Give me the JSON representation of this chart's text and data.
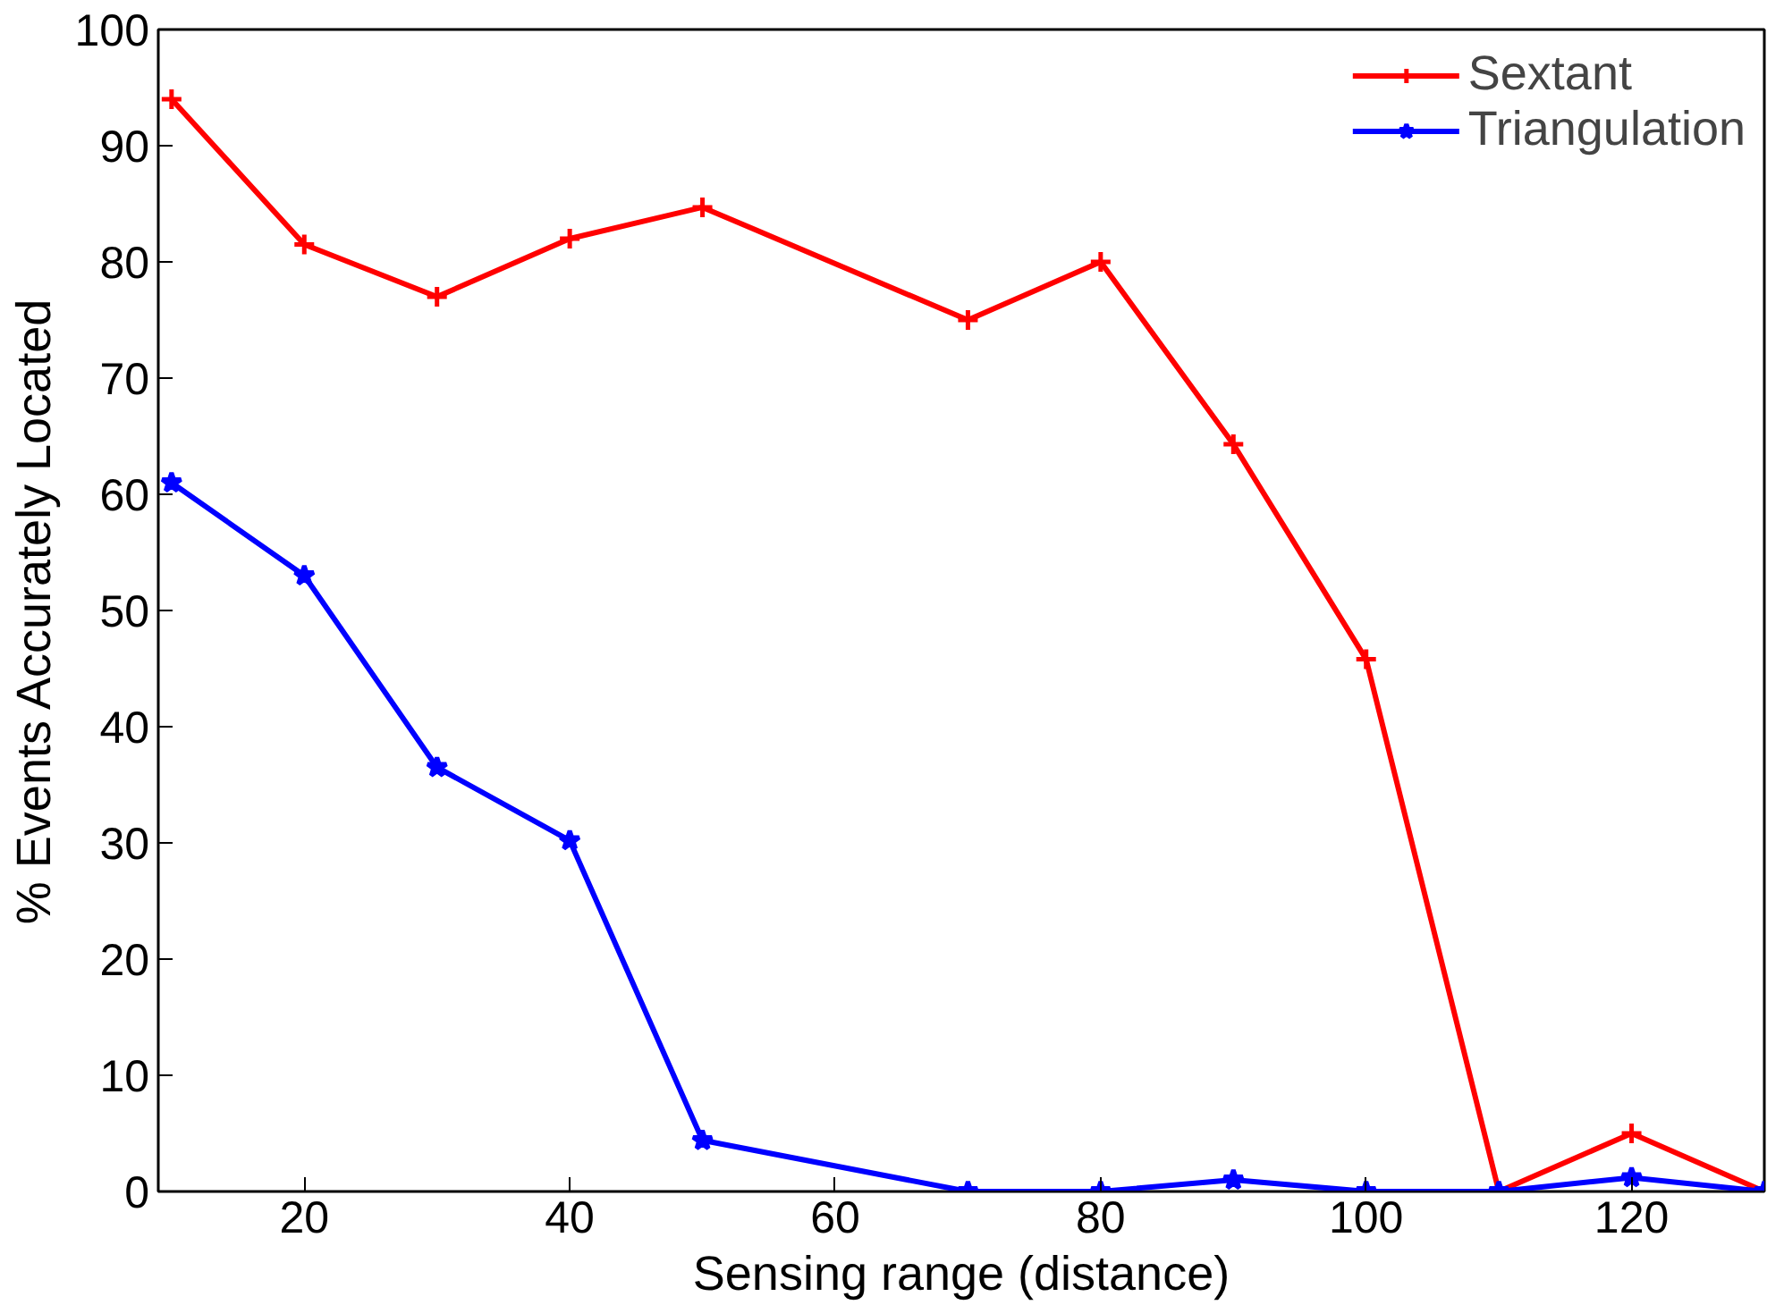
{
  "chart_data": {
    "type": "line",
    "xlabel": "Sensing range (distance)",
    "ylabel": "% Events Accurately Located",
    "x": [
      10,
      20,
      30,
      40,
      50,
      70,
      80,
      90,
      100,
      110,
      120,
      130
    ],
    "series": [
      {
        "name": "Sextant",
        "color": "#ff0000",
        "marker": "cross",
        "values": [
          94,
          81.5,
          77,
          82,
          84.7,
          75,
          80,
          64.3,
          45.8,
          0,
          5,
          0
        ]
      },
      {
        "name": "Triangulation",
        "color": "#0000ff",
        "marker": "star",
        "values": [
          61,
          53,
          36.5,
          30.2,
          4.4,
          0,
          0,
          1,
          0,
          0,
          1.2,
          0
        ]
      }
    ],
    "xlim": [
      9,
      130
    ],
    "xticks": [
      20,
      40,
      60,
      80,
      100,
      120
    ],
    "ylim": [
      0,
      100
    ],
    "yticks": [
      0,
      10,
      20,
      30,
      40,
      50,
      60,
      70,
      80,
      90,
      100
    ],
    "grid": false,
    "legend": "top right",
    "line_style": "solid"
  }
}
